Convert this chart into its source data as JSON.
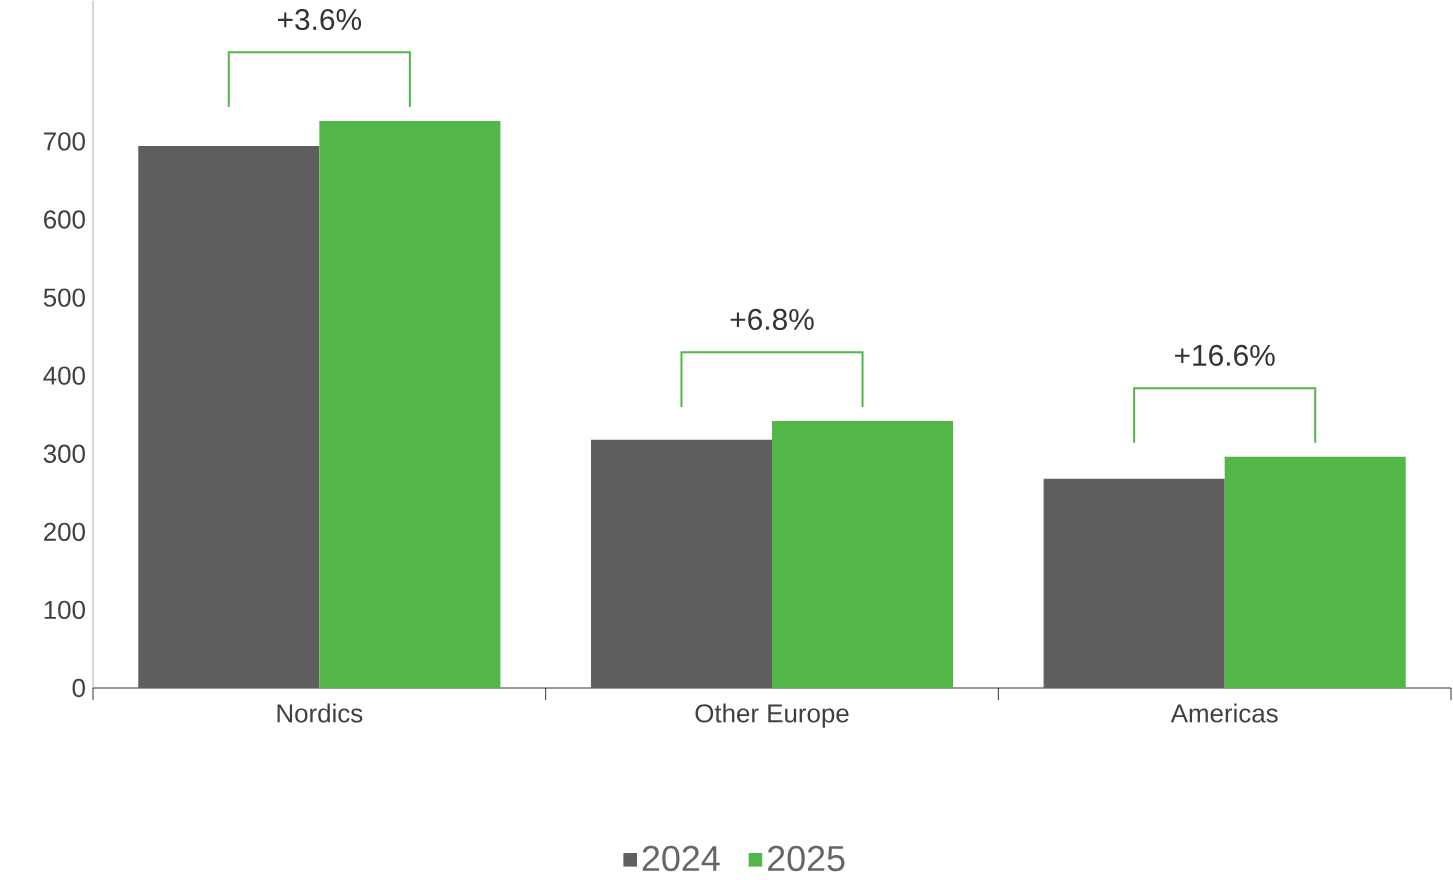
{
  "chart_data": {
    "type": "bar",
    "categories": [
      "Nordics",
      "Other Europe",
      "Americas"
    ],
    "series": [
      {
        "name": "2024",
        "color": "#5f5f5f",
        "values": [
          694,
          318,
          268
        ]
      },
      {
        "name": "2025",
        "color": "#52b748",
        "values": [
          726,
          342,
          296
        ]
      }
    ],
    "ylim": [
      0,
      880
    ],
    "yticks": [
      0,
      100,
      200,
      300,
      400,
      500,
      600,
      700
    ],
    "grid": false,
    "legend": "bottom",
    "annotations": [
      "+3.6%",
      "+6.8%",
      "+16.6%"
    ]
  }
}
